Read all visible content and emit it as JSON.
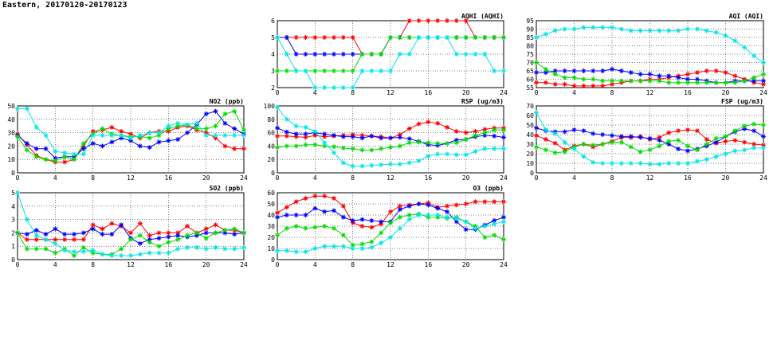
{
  "page": {
    "title": "Eastern, 20170120-20170123"
  },
  "colors": {
    "series1": "#ff0000",
    "series2": "#0000ff",
    "series3": "#00dd00",
    "series4": "#00e6e6"
  },
  "chart_data": [
    {
      "id": "aqhi",
      "type": "line",
      "title": "AQHI (AQHI)",
      "ylim": [
        2,
        6
      ],
      "yticks": [
        2,
        3,
        4,
        5,
        6
      ],
      "xticks": [
        0,
        4,
        8,
        12,
        16,
        20,
        24
      ],
      "x": [
        0,
        1,
        2,
        3,
        4,
        5,
        6,
        7,
        8,
        9,
        10,
        11,
        12,
        13,
        14,
        15,
        16,
        17,
        18,
        19,
        20,
        21,
        22,
        23,
        24
      ],
      "series": [
        {
          "color": "#ff0000",
          "values": [
            5,
            5,
            5,
            5,
            5,
            5,
            5,
            5,
            5,
            4,
            4,
            4,
            5,
            5,
            6,
            6,
            6,
            6,
            6,
            6,
            6,
            5,
            5,
            5,
            5
          ]
        },
        {
          "color": "#0000ff",
          "values": [
            5,
            5,
            4,
            4,
            4,
            4,
            4,
            4,
            4,
            4,
            4,
            4,
            5,
            5,
            5,
            5,
            5,
            5,
            5,
            5,
            5,
            5,
            5,
            5,
            5
          ]
        },
        {
          "color": "#00dd00",
          "values": [
            3,
            3,
            3,
            3,
            3,
            3,
            3,
            3,
            3,
            4,
            4,
            4,
            5,
            5,
            5,
            5,
            5,
            5,
            5,
            5,
            5,
            5,
            5,
            5,
            5
          ]
        },
        {
          "color": "#00e6e6",
          "values": [
            5,
            4,
            3,
            3,
            2,
            2,
            2,
            2,
            2,
            3,
            3,
            3,
            3,
            4,
            4,
            5,
            5,
            5,
            5,
            4,
            4,
            4,
            4,
            3,
            3
          ]
        }
      ]
    },
    {
      "id": "aqi",
      "type": "line",
      "title": "AQI (AQI)",
      "ylim": [
        55,
        95
      ],
      "yticks": [
        55,
        60,
        65,
        70,
        75,
        80,
        85,
        90,
        95
      ],
      "xticks": [
        0,
        4,
        8,
        12,
        16,
        20,
        24
      ],
      "x": [
        0,
        1,
        2,
        3,
        4,
        5,
        6,
        7,
        8,
        9,
        10,
        11,
        12,
        13,
        14,
        15,
        16,
        17,
        18,
        19,
        20,
        21,
        22,
        23,
        24
      ],
      "series": [
        {
          "color": "#ff0000",
          "values": [
            58,
            58,
            57,
            57,
            56,
            56,
            56,
            56,
            57,
            58,
            59,
            59,
            60,
            60,
            61,
            62,
            63,
            64,
            65,
            65,
            64,
            62,
            60,
            58,
            57
          ]
        },
        {
          "color": "#0000ff",
          "values": [
            64,
            64,
            65,
            65,
            65,
            65,
            65,
            65,
            66,
            65,
            64,
            63,
            63,
            62,
            62,
            61,
            60,
            60,
            59,
            58,
            58,
            59,
            59,
            59,
            59
          ]
        },
        {
          "color": "#00dd00",
          "values": [
            70,
            66,
            63,
            61,
            61,
            60,
            60,
            59,
            59,
            59,
            59,
            59,
            59,
            59,
            58,
            58,
            58,
            58,
            58,
            58,
            58,
            58,
            59,
            61,
            63
          ]
        },
        {
          "color": "#00e6e6",
          "values": [
            85,
            87,
            89,
            90,
            90,
            91,
            91,
            91,
            91,
            90,
            89,
            89,
            89,
            89,
            89,
            89,
            90,
            90,
            89,
            88,
            86,
            83,
            79,
            74,
            70
          ]
        }
      ]
    },
    {
      "id": "no2",
      "type": "line",
      "title": "NO2 (ppb)",
      "ylim": [
        0,
        50
      ],
      "yticks": [
        0,
        10,
        20,
        30,
        40,
        50
      ],
      "xticks": [
        0,
        4,
        8,
        12,
        16,
        20,
        24
      ],
      "x": [
        0,
        1,
        2,
        3,
        4,
        5,
        6,
        7,
        8,
        9,
        10,
        11,
        12,
        13,
        14,
        15,
        16,
        17,
        18,
        19,
        20,
        21,
        22,
        23,
        24
      ],
      "series": [
        {
          "color": "#ff0000",
          "values": [
            29,
            21,
            13,
            10,
            8,
            8,
            10,
            20,
            31,
            32,
            34,
            31,
            29,
            26,
            30,
            31,
            31,
            34,
            35,
            32,
            30,
            26,
            20,
            18,
            18
          ]
        },
        {
          "color": "#0000ff",
          "values": [
            28,
            22,
            18,
            18,
            11,
            12,
            12,
            18,
            22,
            20,
            23,
            26,
            24,
            20,
            19,
            23,
            24,
            25,
            30,
            36,
            44,
            46,
            37,
            33,
            29
          ]
        },
        {
          "color": "#00dd00",
          "values": [
            27,
            17,
            12,
            10,
            9,
            12,
            10,
            22,
            29,
            33,
            29,
            28,
            27,
            27,
            26,
            28,
            33,
            35,
            36,
            33,
            33,
            35,
            44,
            46,
            32
          ]
        },
        {
          "color": "#00e6e6",
          "values": [
            48,
            48,
            34,
            28,
            16,
            15,
            14,
            14,
            28,
            28,
            28,
            28,
            26,
            28,
            30,
            30,
            35,
            37,
            36,
            37,
            28,
            28,
            28,
            28,
            28
          ]
        }
      ]
    },
    {
      "id": "rsp",
      "type": "line",
      "title": "RSP (ug/m3)",
      "ylim": [
        0,
        100
      ],
      "yticks": [
        0,
        20,
        40,
        60,
        80,
        100
      ],
      "xticks": [
        0,
        4,
        8,
        12,
        16,
        20,
        24
      ],
      "x": [
        0,
        1,
        2,
        3,
        4,
        5,
        6,
        7,
        8,
        9,
        10,
        11,
        12,
        13,
        14,
        15,
        16,
        17,
        18,
        19,
        20,
        21,
        22,
        23,
        24
      ],
      "series": [
        {
          "color": "#ff0000",
          "values": [
            55,
            55,
            54,
            53,
            56,
            54,
            55,
            56,
            57,
            56,
            55,
            54,
            52,
            57,
            66,
            73,
            76,
            74,
            68,
            62,
            60,
            62,
            65,
            67,
            67
          ]
        },
        {
          "color": "#0000ff",
          "values": [
            67,
            61,
            58,
            58,
            60,
            58,
            56,
            54,
            54,
            52,
            55,
            52,
            52,
            53,
            51,
            47,
            42,
            41,
            44,
            49,
            50,
            54,
            56,
            55,
            53
          ]
        },
        {
          "color": "#00dd00",
          "values": [
            38,
            40,
            40,
            42,
            42,
            40,
            39,
            37,
            36,
            34,
            34,
            36,
            38,
            40,
            45,
            46,
            45,
            44,
            44,
            45,
            50,
            56,
            60,
            64,
            64
          ]
        },
        {
          "color": "#00e6e6",
          "values": [
            98,
            80,
            70,
            68,
            62,
            45,
            30,
            15,
            10,
            10,
            11,
            12,
            13,
            13,
            15,
            18,
            25,
            28,
            28,
            27,
            27,
            32,
            36,
            36,
            36
          ]
        }
      ]
    },
    {
      "id": "fsp",
      "type": "line",
      "title": "FSP (ug/m3)",
      "ylim": [
        0,
        70
      ],
      "yticks": [
        0,
        10,
        20,
        30,
        40,
        50,
        60,
        70
      ],
      "xticks": [
        0,
        4,
        8,
        12,
        16,
        20,
        24
      ],
      "x": [
        0,
        1,
        2,
        3,
        4,
        5,
        6,
        7,
        8,
        9,
        10,
        11,
        12,
        13,
        14,
        15,
        16,
        17,
        18,
        19,
        20,
        21,
        22,
        23,
        24
      ],
      "series": [
        {
          "color": "#ff0000",
          "values": [
            39,
            35,
            31,
            24,
            28,
            30,
            27,
            30,
            33,
            37,
            37,
            38,
            35,
            37,
            42,
            44,
            45,
            44,
            35,
            31,
            33,
            34,
            32,
            30,
            29
          ]
        },
        {
          "color": "#0000ff",
          "values": [
            47,
            44,
            43,
            43,
            45,
            44,
            41,
            40,
            39,
            38,
            38,
            37,
            36,
            34,
            30,
            25,
            23,
            25,
            28,
            32,
            38,
            43,
            46,
            44,
            38
          ]
        },
        {
          "color": "#00dd00",
          "values": [
            27,
            24,
            21,
            22,
            27,
            30,
            29,
            30,
            32,
            32,
            27,
            22,
            24,
            28,
            33,
            34,
            28,
            24,
            30,
            36,
            38,
            44,
            49,
            51,
            50
          ]
        },
        {
          "color": "#00e6e6",
          "values": [
            63,
            45,
            41,
            32,
            25,
            17,
            11,
            10,
            10,
            10,
            10,
            10,
            9,
            9,
            10,
            10,
            10,
            12,
            14,
            17,
            20,
            23,
            24,
            26,
            26
          ]
        }
      ]
    },
    {
      "id": "so2",
      "type": "line",
      "title": "SO2 (ppb)",
      "ylim": [
        0,
        5
      ],
      "yticks": [
        0,
        1,
        2,
        3,
        4,
        5
      ],
      "xticks": [
        0,
        4,
        8,
        12,
        16,
        20,
        24
      ],
      "x": [
        0,
        1,
        2,
        3,
        4,
        5,
        6,
        7,
        8,
        9,
        10,
        11,
        12,
        13,
        14,
        15,
        16,
        17,
        18,
        19,
        20,
        21,
        22,
        23,
        24
      ],
      "series": [
        {
          "color": "#ff0000",
          "values": [
            2,
            1.5,
            1.5,
            1.5,
            1.5,
            1.5,
            1.5,
            1.5,
            2.6,
            2.3,
            2.7,
            2.5,
            2,
            2.7,
            1.8,
            2,
            2,
            2,
            2.5,
            2,
            2.3,
            2.6,
            2.2,
            2.2,
            2
          ]
        },
        {
          "color": "#0000ff",
          "values": [
            2,
            1.9,
            2.2,
            1.9,
            2.3,
            1.9,
            1.9,
            2,
            2.3,
            1.9,
            1.9,
            2.6,
            1.6,
            1.2,
            1.5,
            1.6,
            1.7,
            1.8,
            1.7,
            1.8,
            2,
            2,
            2,
            1.9,
            2
          ]
        },
        {
          "color": "#00dd00",
          "values": [
            2,
            0.8,
            0.8,
            0.8,
            0.5,
            0.8,
            0.3,
            0.9,
            0.5,
            0.4,
            0.4,
            0.8,
            1.5,
            1.8,
            1.3,
            1,
            1.3,
            1.5,
            1.8,
            2,
            1.6,
            2,
            2.2,
            2.3,
            2
          ]
        },
        {
          "color": "#00e6e6",
          "values": [
            5,
            3,
            1.8,
            1.5,
            1.2,
            0.7,
            0.6,
            0.6,
            0.7,
            0.4,
            0.3,
            0.3,
            0.3,
            0.4,
            0.5,
            0.5,
            0.5,
            0.8,
            0.9,
            0.9,
            0.8,
            0.9,
            0.8,
            0.8,
            0.9
          ]
        }
      ]
    },
    {
      "id": "o3",
      "type": "line",
      "title": "O3 (ppb)",
      "ylim": [
        0,
        60
      ],
      "yticks": [
        0,
        10,
        20,
        30,
        40,
        50,
        60
      ],
      "xticks": [
        0,
        4,
        8,
        12,
        16,
        20,
        24
      ],
      "x": [
        0,
        1,
        2,
        3,
        4,
        5,
        6,
        7,
        8,
        9,
        10,
        11,
        12,
        13,
        14,
        15,
        16,
        17,
        18,
        19,
        20,
        21,
        22,
        23,
        24
      ],
      "series": [
        {
          "color": "#ff0000",
          "values": [
            42,
            47,
            52,
            55,
            57,
            57,
            55,
            48,
            33,
            30,
            29,
            32,
            43,
            48,
            49,
            50,
            51,
            47,
            48,
            49,
            50,
            52,
            52,
            52,
            52
          ]
        },
        {
          "color": "#0000ff",
          "values": [
            38,
            40,
            40,
            40,
            46,
            43,
            44,
            38,
            35,
            36,
            35,
            34,
            34,
            45,
            48,
            50,
            49,
            46,
            43,
            34,
            27,
            27,
            31,
            35,
            38
          ]
        },
        {
          "color": "#00dd00",
          "values": [
            22,
            28,
            30,
            28,
            29,
            30,
            28,
            22,
            13,
            14,
            16,
            24,
            33,
            38,
            40,
            41,
            38,
            38,
            37,
            38,
            34,
            30,
            20,
            22,
            18
          ]
        },
        {
          "color": "#00e6e6",
          "values": [
            8,
            8,
            7,
            7,
            10,
            12,
            12,
            12,
            10,
            10,
            11,
            15,
            20,
            28,
            36,
            40,
            40,
            40,
            38,
            37,
            34,
            28,
            30,
            32,
            34
          ]
        }
      ]
    }
  ]
}
